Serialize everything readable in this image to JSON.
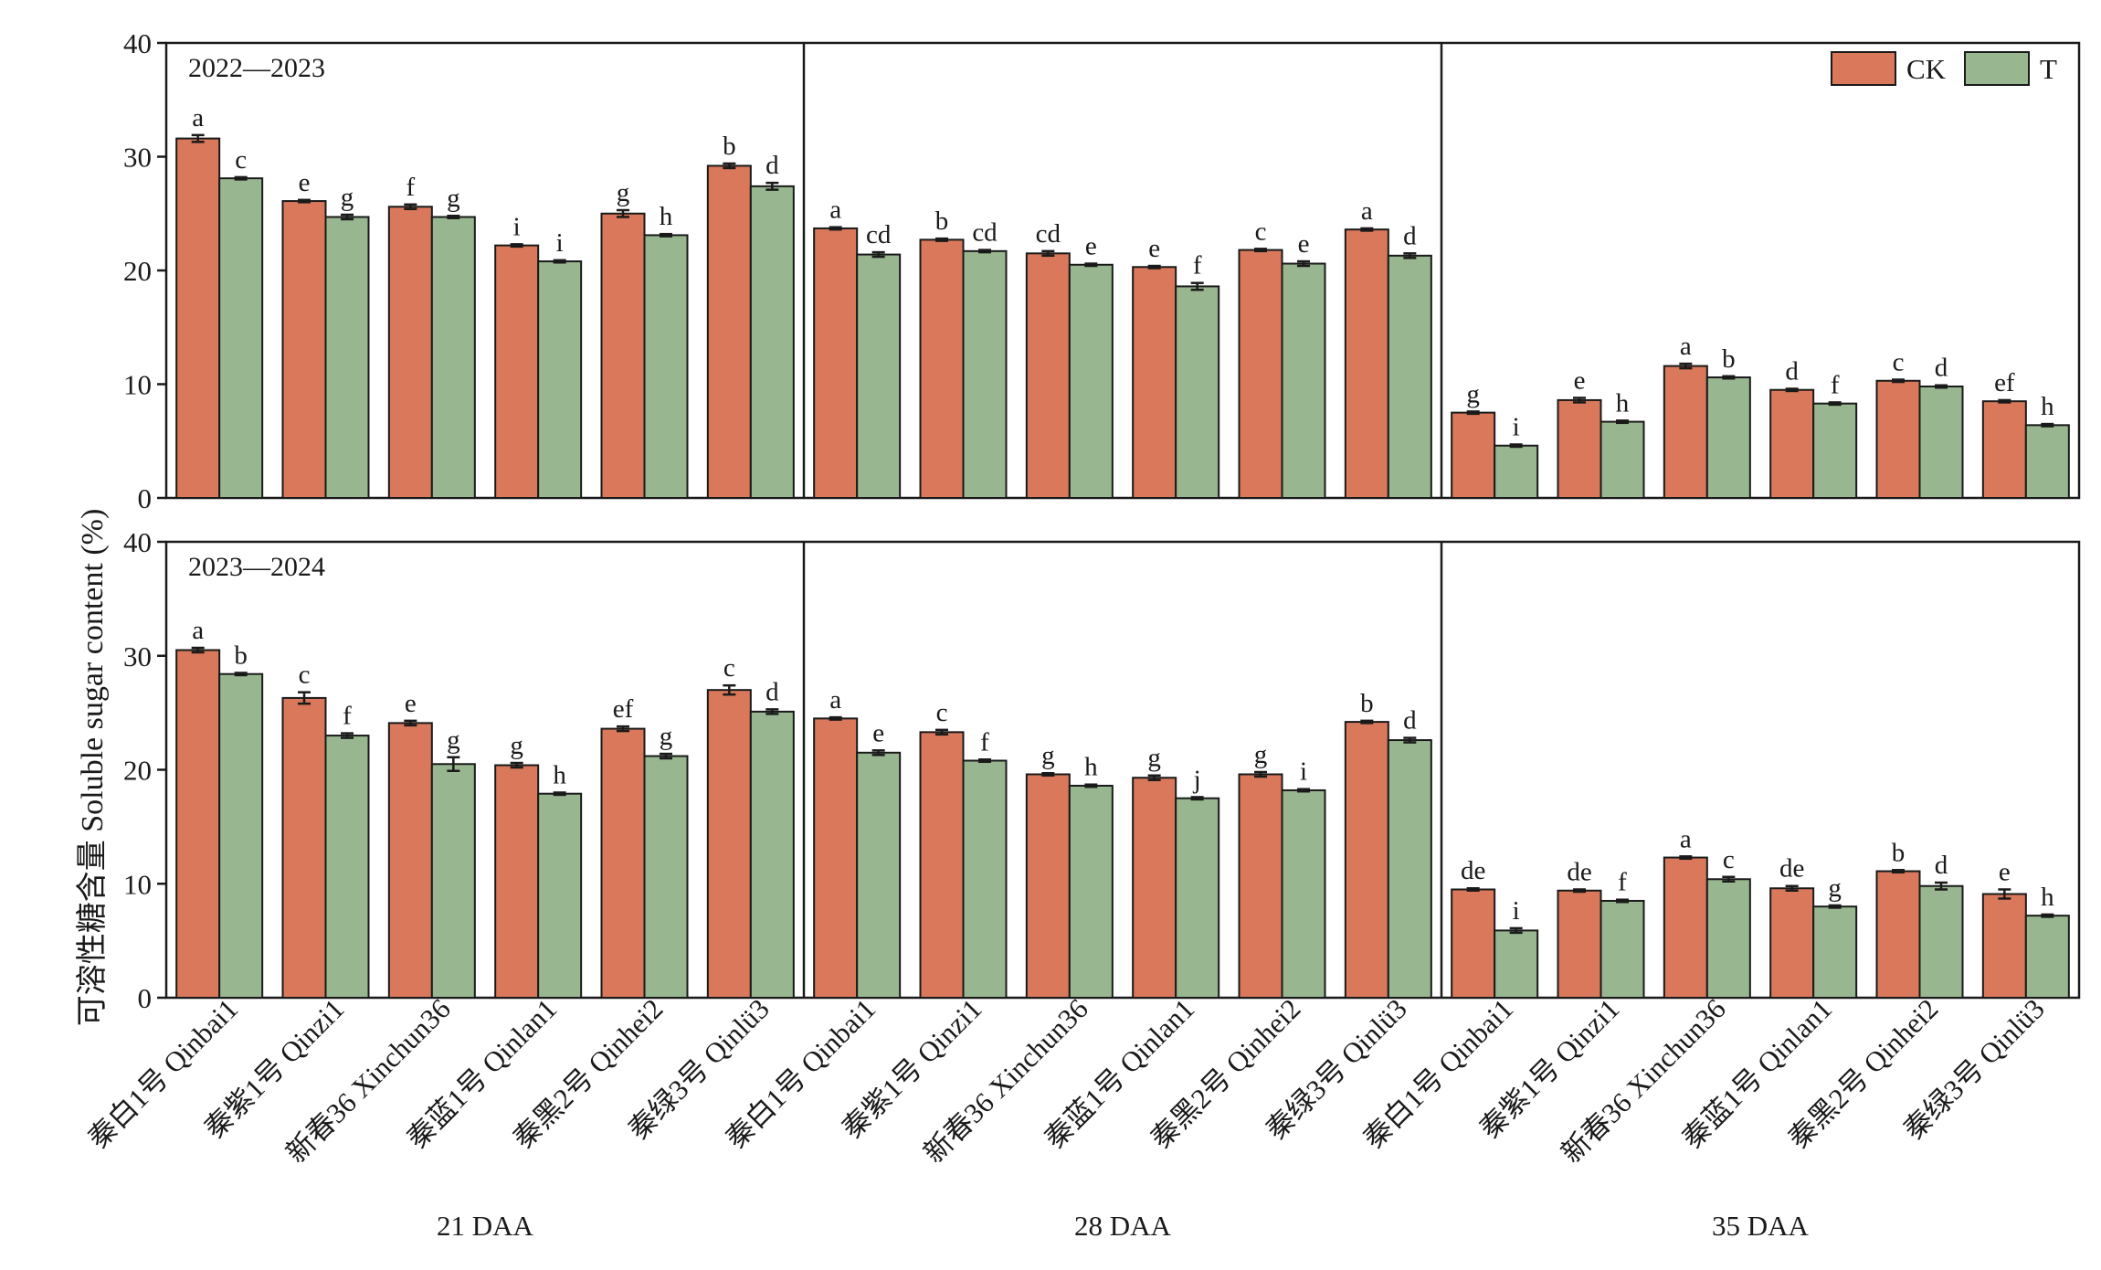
{
  "ylabel": "可溶性糖含量 Soluble sugar content (%)",
  "legend": {
    "placement": "top-right",
    "items": [
      {
        "key": "CK",
        "label": "CK",
        "color": "#d9785a"
      },
      {
        "key": "T",
        "label": "T",
        "color": "#98b790"
      }
    ]
  },
  "colors": {
    "CK": "#d9785a",
    "T": "#98b790",
    "axis": "#1a1a1a"
  },
  "stage_labels": [
    "21 DAA",
    "28 DAA",
    "35 DAA"
  ],
  "cultivars": [
    "秦白1号 Qinbai1",
    "秦紫1号 Qinzi1",
    "新春36 Xinchun36",
    "秦蓝1号 Qinlan1",
    "秦黑2号 Qinhei2",
    "秦绿3号 Qinlü3"
  ],
  "chart_data": [
    {
      "type": "bar",
      "panel_label": "2022—2023",
      "ylim": [
        0,
        40
      ],
      "yticks": [
        0,
        10,
        20,
        30,
        40
      ],
      "groups": [
        {
          "stage": "21 DAA",
          "CK": {
            "values": [
              31.6,
              26.1,
              25.6,
              22.2,
              25.0,
              29.2
            ],
            "errors": [
              0.3,
              0.1,
              0.2,
              0.1,
              0.3,
              0.2
            ],
            "letters": [
              "a",
              "e",
              "f",
              "i",
              "g",
              "b"
            ]
          },
          "T": {
            "values": [
              28.1,
              24.7,
              24.7,
              20.8,
              23.1,
              27.4
            ],
            "errors": [
              0.1,
              0.2,
              0.1,
              0.1,
              0.1,
              0.3
            ],
            "letters": [
              "c",
              "g",
              "g",
              "i",
              "h",
              "d"
            ]
          }
        },
        {
          "stage": "28 DAA",
          "CK": {
            "values": [
              23.7,
              22.7,
              21.5,
              20.3,
              21.8,
              23.6
            ],
            "errors": [
              0.1,
              0.1,
              0.2,
              0.1,
              0.1,
              0.1
            ],
            "letters": [
              "a",
              "b",
              "cd",
              "e",
              "c",
              "a"
            ]
          },
          "T": {
            "values": [
              21.4,
              21.7,
              20.5,
              18.6,
              20.6,
              21.3
            ],
            "errors": [
              0.2,
              0.1,
              0.1,
              0.3,
              0.2,
              0.2
            ],
            "letters": [
              "cd",
              "cd",
              "e",
              "f",
              "e",
              "d"
            ]
          }
        },
        {
          "stage": "35 DAA",
          "CK": {
            "values": [
              7.5,
              8.6,
              11.6,
              9.5,
              10.3,
              8.5
            ],
            "errors": [
              0.1,
              0.2,
              0.2,
              0.1,
              0.1,
              0.1
            ],
            "letters": [
              "g",
              "e",
              "a",
              "d",
              "c",
              "ef"
            ]
          },
          "T": {
            "values": [
              4.6,
              6.7,
              10.6,
              8.3,
              9.8,
              6.4
            ],
            "errors": [
              0.1,
              0.1,
              0.1,
              0.1,
              0.1,
              0.1
            ],
            "letters": [
              "i",
              "h",
              "b",
              "f",
              "d",
              "h"
            ]
          }
        }
      ]
    },
    {
      "type": "bar",
      "panel_label": "2023—2024",
      "ylim": [
        0,
        40
      ],
      "yticks": [
        0,
        10,
        20,
        30,
        40
      ],
      "groups": [
        {
          "stage": "21 DAA",
          "CK": {
            "values": [
              30.5,
              26.3,
              24.1,
              20.4,
              23.6,
              27.0
            ],
            "errors": [
              0.2,
              0.5,
              0.2,
              0.2,
              0.2,
              0.4
            ],
            "letters": [
              "a",
              "c",
              "e",
              "g",
              "ef",
              "c"
            ]
          },
          "T": {
            "values": [
              28.4,
              23.0,
              20.5,
              17.9,
              21.2,
              25.1
            ],
            "errors": [
              0.1,
              0.2,
              0.6,
              0.1,
              0.2,
              0.2
            ],
            "letters": [
              "b",
              "f",
              "g",
              "h",
              "g",
              "d"
            ]
          }
        },
        {
          "stage": "28 DAA",
          "CK": {
            "values": [
              24.5,
              23.3,
              19.6,
              19.3,
              19.6,
              24.2
            ],
            "errors": [
              0.1,
              0.2,
              0.1,
              0.2,
              0.2,
              0.1
            ],
            "letters": [
              "a",
              "c",
              "g",
              "g",
              "g",
              "b"
            ]
          },
          "T": {
            "values": [
              21.5,
              20.8,
              18.6,
              17.5,
              18.2,
              22.6
            ],
            "errors": [
              0.2,
              0.1,
              0.1,
              0.1,
              0.1,
              0.2
            ],
            "letters": [
              "e",
              "f",
              "h",
              "j",
              "i",
              "d"
            ]
          }
        },
        {
          "stage": "35 DAA",
          "CK": {
            "values": [
              9.5,
              9.4,
              12.3,
              9.6,
              11.1,
              9.1
            ],
            "errors": [
              0.1,
              0.1,
              0.1,
              0.2,
              0.1,
              0.4
            ],
            "letters": [
              "de",
              "de",
              "a",
              "de",
              "b",
              "e"
            ]
          },
          "T": {
            "values": [
              5.9,
              8.5,
              10.4,
              8.0,
              9.8,
              7.2
            ],
            "errors": [
              0.2,
              0.1,
              0.2,
              0.1,
              0.3,
              0.1
            ],
            "letters": [
              "i",
              "f",
              "c",
              "g",
              "d",
              "h"
            ]
          }
        }
      ]
    }
  ]
}
